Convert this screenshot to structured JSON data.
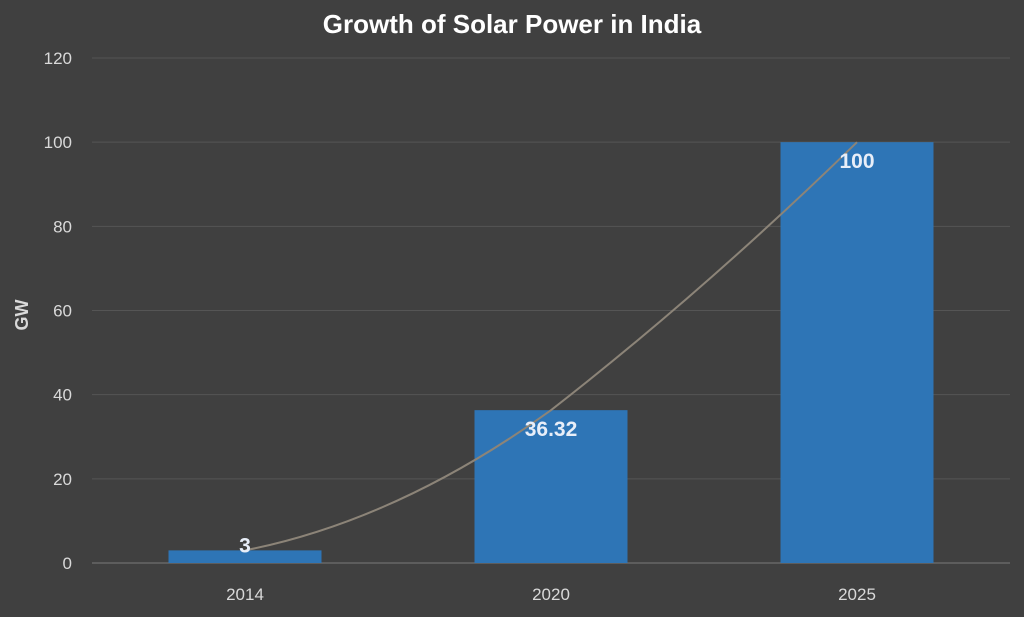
{
  "chart_data": {
    "type": "bar",
    "title": "Growth of Solar Power in India",
    "xlabel": "",
    "ylabel": "GW",
    "categories": [
      "2014",
      "2020",
      "2025"
    ],
    "values": [
      3,
      36.32,
      100
    ],
    "data_labels": [
      "3",
      "36.32",
      "100"
    ],
    "ylim": [
      0,
      120
    ],
    "yticks": [
      0,
      20,
      40,
      60,
      80,
      100,
      120
    ],
    "grid": true,
    "trendline": true,
    "colors": {
      "background": "#404040",
      "bar": "#2e75b6",
      "gridline": "#555555",
      "trendline": "#8c8478",
      "text": "#d9d9d9",
      "title": "#ffffff"
    }
  }
}
